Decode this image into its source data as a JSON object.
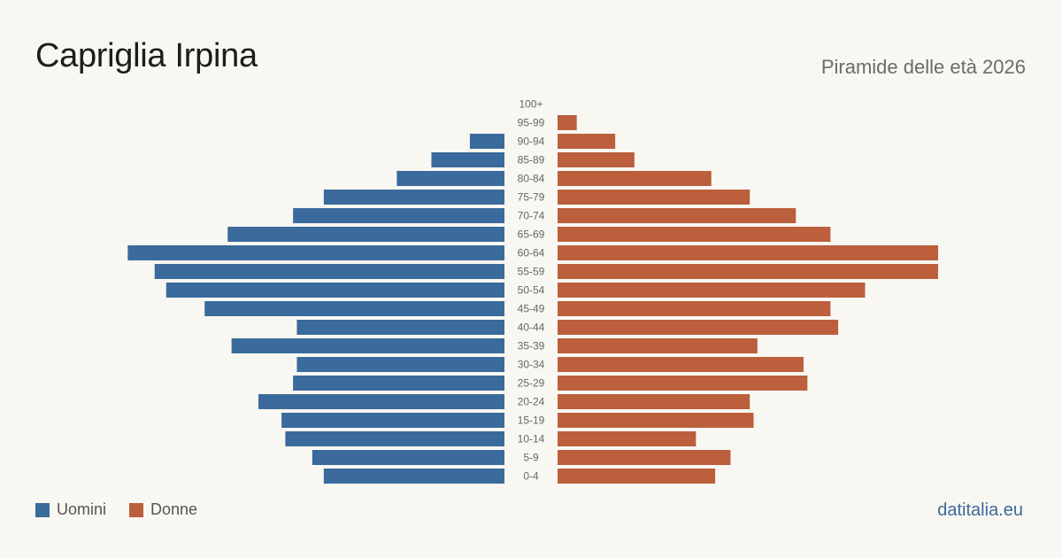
{
  "header": {
    "title": "Capriglia Irpina",
    "subtitle": "Piramide delle età 2026"
  },
  "legend": {
    "men_label": "Uomini",
    "women_label": "Donne"
  },
  "source": "datitalia.eu",
  "colors": {
    "men": "#3b6a9c",
    "women": "#bb5f3d",
    "background": "#f9f7f2",
    "tick_label": "#666666"
  },
  "chart_data": {
    "type": "bar",
    "orientation": "horizontal-pyramid",
    "categories": [
      "100+",
      "95-99",
      "90-94",
      "85-89",
      "80-84",
      "75-79",
      "70-74",
      "65-69",
      "60-64",
      "55-59",
      "50-54",
      "45-49",
      "40-44",
      "35-39",
      "30-34",
      "25-29",
      "20-24",
      "15-19",
      "10-14",
      "5-9",
      "0-4"
    ],
    "series": [
      {
        "name": "Uomini",
        "values": [
          0,
          0,
          9,
          19,
          28,
          47,
          55,
          72,
          98,
          91,
          88,
          78,
          54,
          71,
          54,
          55,
          64,
          58,
          57,
          50,
          47
        ]
      },
      {
        "name": "Donne",
        "values": [
          0,
          5,
          15,
          20,
          40,
          50,
          62,
          71,
          99,
          99,
          80,
          71,
          73,
          52,
          64,
          65,
          50,
          51,
          36,
          45,
          41
        ]
      }
    ],
    "xlim": [
      0,
      99
    ],
    "grid": false,
    "legend_position": "bottom-left"
  }
}
